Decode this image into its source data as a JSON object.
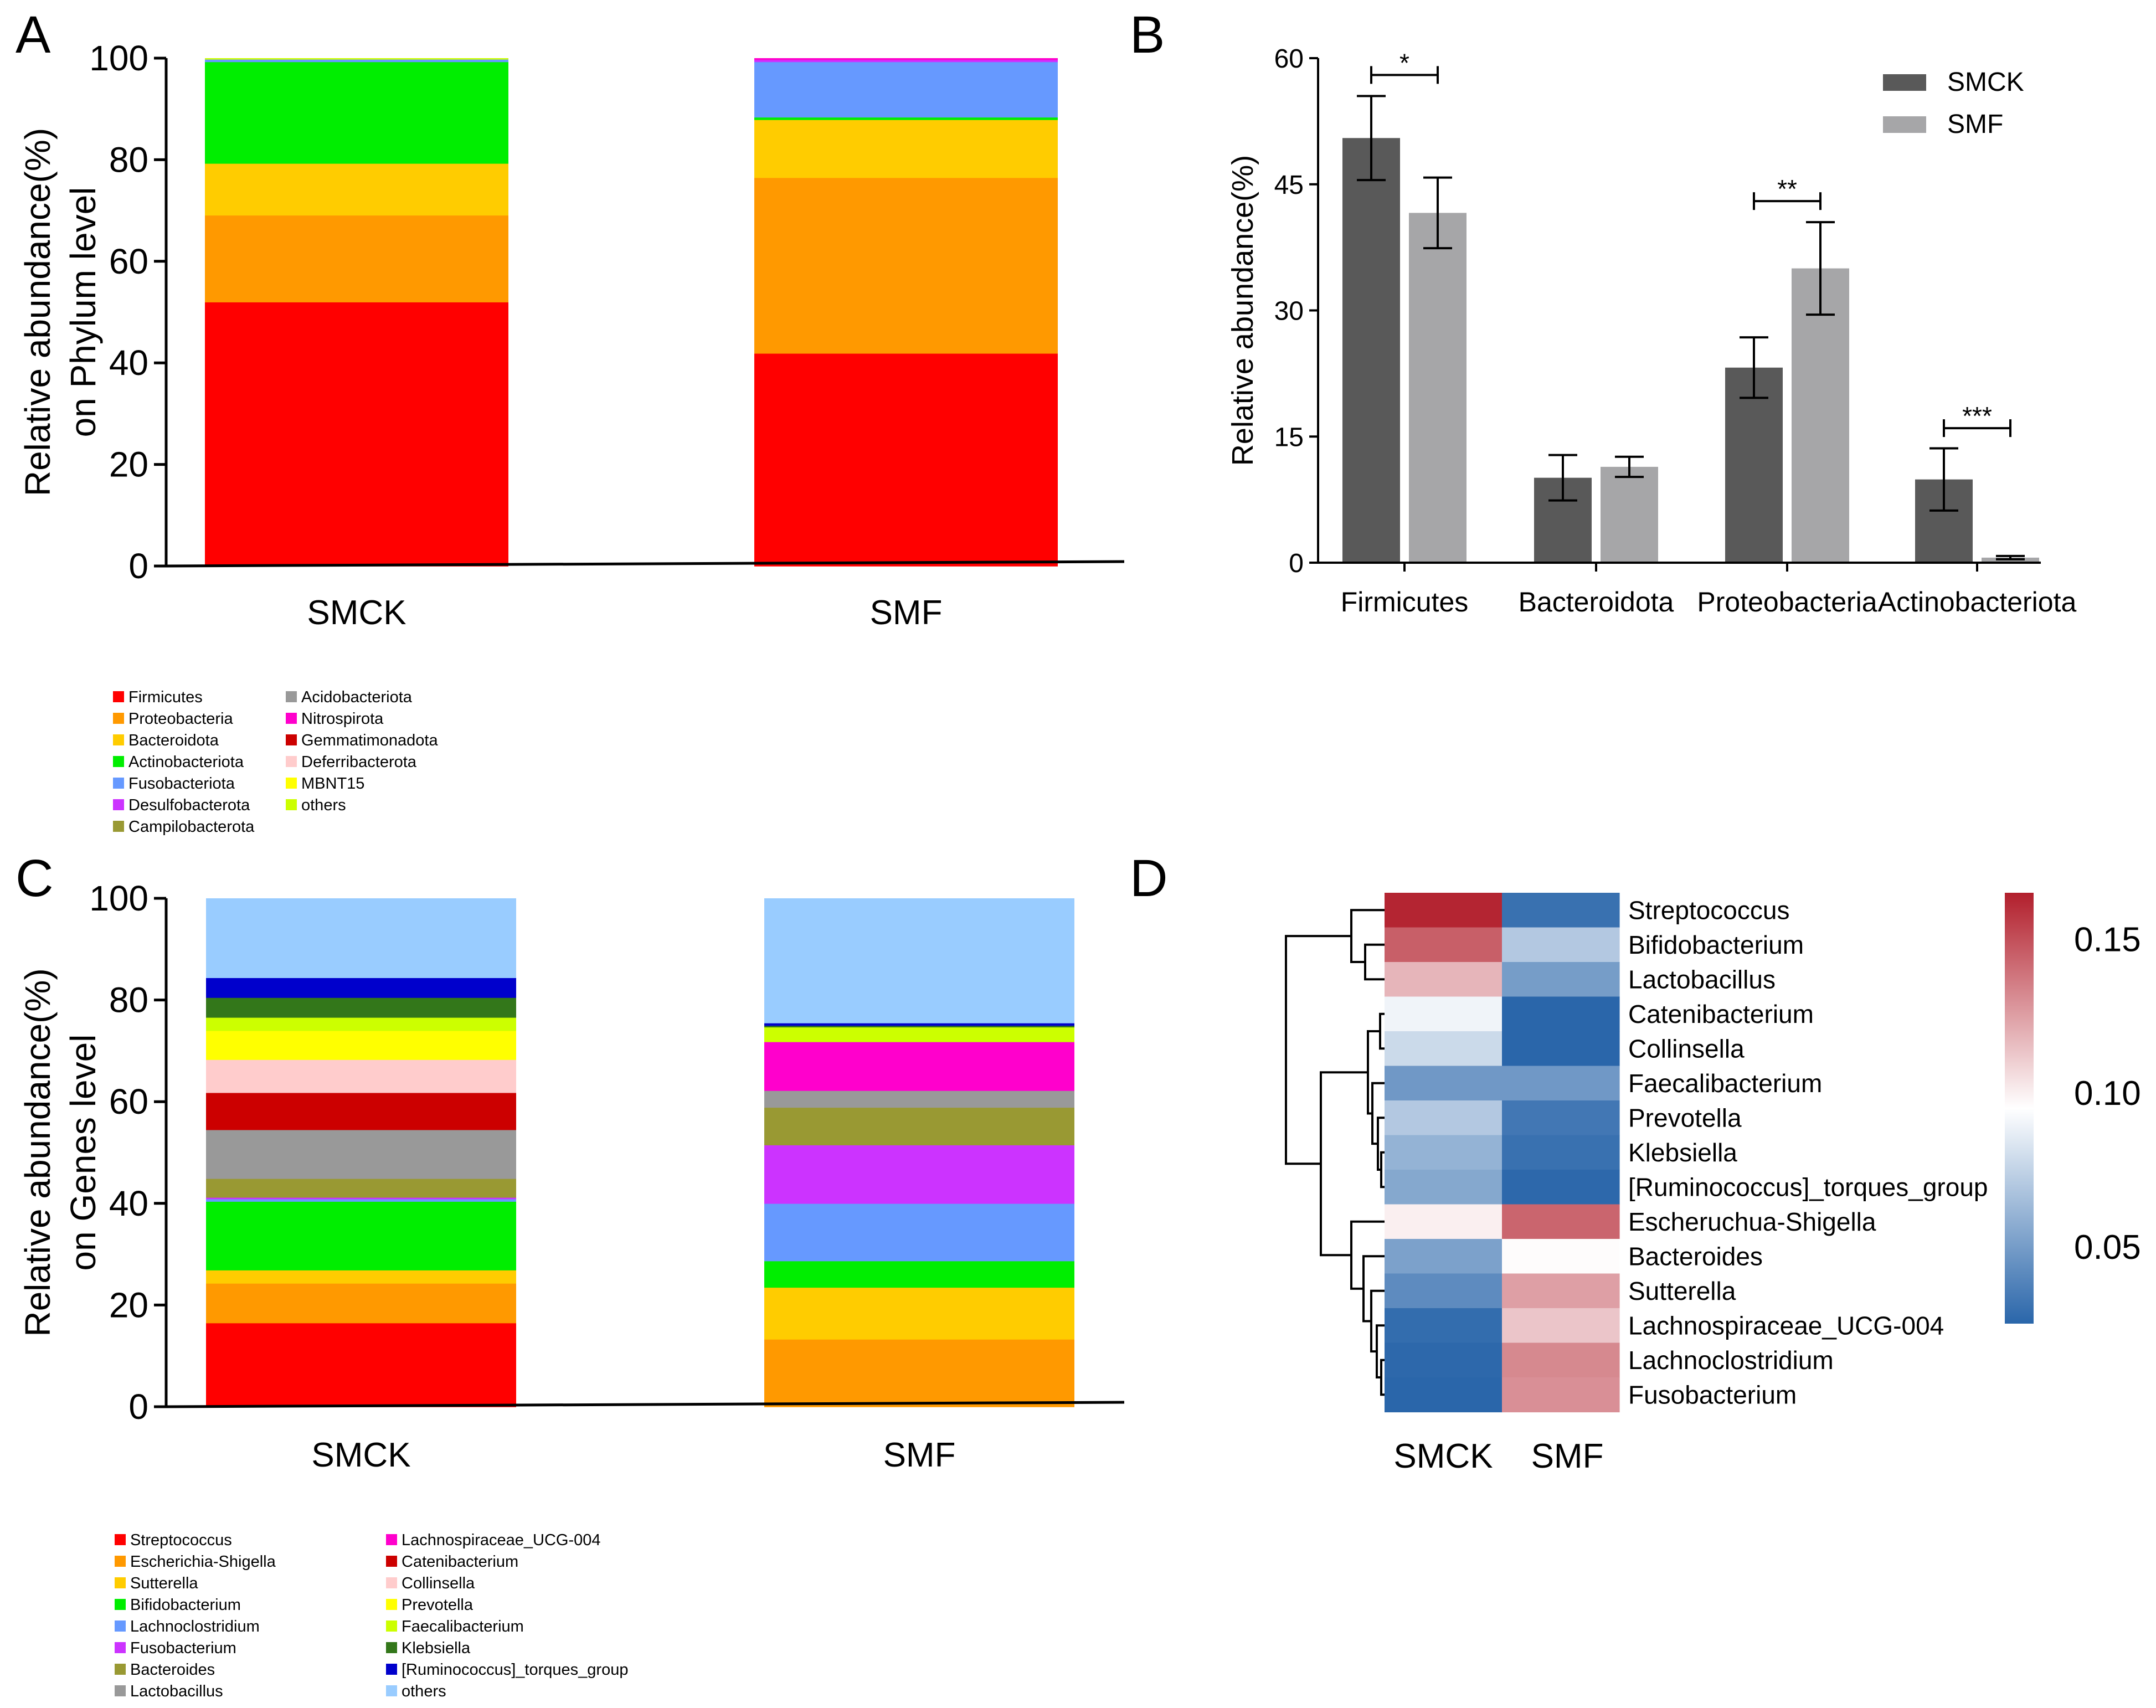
{
  "panels": {
    "A": {
      "letter": "A"
    },
    "B": {
      "letter": "B"
    },
    "C": {
      "letter": "C"
    },
    "D": {
      "letter": "D"
    }
  },
  "chart_data": [
    {
      "id": "A",
      "type": "bar",
      "stacked": true,
      "title": "",
      "xlabel": "",
      "ylabel_lines": [
        "Relative abundance(%)",
        "on Phylum level"
      ],
      "ylim": [
        0,
        100
      ],
      "yticks": [
        0,
        20,
        40,
        60,
        80,
        100
      ],
      "categories": [
        "SMCK",
        "SMF"
      ],
      "legend": {
        "placement": "bottom-left",
        "columns": 2,
        "rows_per_column": 7
      },
      "series": [
        {
          "name": "Firmicutes",
          "color": "#FF0000",
          "values": [
            52.0,
            41.9
          ]
        },
        {
          "name": "Proteobacteria",
          "color": "#FF9900",
          "values": [
            17.1,
            34.6
          ]
        },
        {
          "name": "Bacteroidota",
          "color": "#FFCC00",
          "values": [
            10.2,
            11.4
          ]
        },
        {
          "name": "Actinobacteriota",
          "color": "#00EE00",
          "values": [
            20.0,
            0.5
          ]
        },
        {
          "name": "Fusobacteriota",
          "color": "#6699FF",
          "values": [
            0.5,
            10.9
          ]
        },
        {
          "name": "Desulfobacterota",
          "color": "#CC33FF",
          "values": [
            0.0,
            0.4
          ]
        },
        {
          "name": "Campilobacterota",
          "color": "#999933",
          "values": [
            0.0,
            0.0
          ]
        },
        {
          "name": "Acidobacteriota",
          "color": "#999999",
          "values": [
            0.0,
            0.0
          ]
        },
        {
          "name": "Nitrospirota",
          "color": "#FF00CC",
          "values": [
            0.0,
            0.3
          ]
        },
        {
          "name": "Gemmatimonadota",
          "color": "#CC0000",
          "values": [
            0.0,
            0.0
          ]
        },
        {
          "name": "Deferribacterota",
          "color": "#FFCCCC",
          "values": [
            0.0,
            0.0
          ]
        },
        {
          "name": "MBNT15",
          "color": "#FFFF00",
          "values": [
            0.0,
            0.0
          ]
        },
        {
          "name": "others",
          "color": "#CCFF00",
          "values": [
            0.2,
            0.0
          ]
        }
      ]
    },
    {
      "id": "B",
      "type": "bar",
      "grouped": true,
      "title": "",
      "xlabel": "",
      "ylabel": "Relative abundance(%)",
      "ylim": [
        0,
        60
      ],
      "yticks": [
        0,
        15,
        30,
        45,
        60
      ],
      "categories": [
        "Firmicutes",
        "Bacteroidota",
        "Proteobacteria",
        "Actinobacteriota"
      ],
      "legend": {
        "placement": "top-right"
      },
      "series": [
        {
          "name": "SMCK",
          "color": "#595959",
          "values": [
            50.5,
            10.1,
            23.2,
            9.9
          ],
          "errors": [
            5.0,
            2.7,
            3.6,
            3.7
          ]
        },
        {
          "name": "SMF",
          "color": "#A6A6A8",
          "values": [
            41.6,
            11.4,
            35.0,
            0.6
          ],
          "errors": [
            4.2,
            1.2,
            5.5,
            0.2
          ]
        }
      ],
      "significance": [
        {
          "category": "Firmicutes",
          "label": "*",
          "y": 58.0
        },
        {
          "category": "Proteobacteria",
          "label": "**",
          "y": 43.0
        },
        {
          "category": "Actinobacteriota",
          "label": "***",
          "y": 16.0
        }
      ]
    },
    {
      "id": "C",
      "type": "bar",
      "stacked": true,
      "title": "",
      "xlabel": "",
      "ylabel_lines": [
        "Relative abundance(%)",
        "on Genes level"
      ],
      "ylim": [
        0,
        100
      ],
      "yticks": [
        0,
        20,
        40,
        60,
        80,
        100
      ],
      "categories": [
        "SMCK",
        "SMF"
      ],
      "legend": {
        "placement": "bottom-left",
        "columns": 2,
        "rows_per_column": 8
      },
      "series": [
        {
          "name": "Streptococcus",
          "color": "#FF0000",
          "values": [
            16.5,
            0.0
          ]
        },
        {
          "name": "Escherichia-Shigella",
          "color": "#FF9900",
          "values": [
            7.8,
            13.3
          ]
        },
        {
          "name": "Sutterella",
          "color": "#FFCC00",
          "values": [
            2.6,
            10.2
          ]
        },
        {
          "name": "Bifidobacterium",
          "color": "#00EE00",
          "values": [
            13.5,
            5.2
          ]
        },
        {
          "name": "Lachnoclostridium",
          "color": "#6699FF",
          "values": [
            0.5,
            11.3
          ]
        },
        {
          "name": "Fusobacterium",
          "color": "#CC33FF",
          "values": [
            0.3,
            11.5
          ]
        },
        {
          "name": "Bacteroides",
          "color": "#999933",
          "values": [
            3.7,
            7.4
          ]
        },
        {
          "name": "Lactobacillus",
          "color": "#999999",
          "values": [
            9.6,
            3.3
          ]
        },
        {
          "name": "Lachnospiraceae_UCG-004",
          "color": "#FF00CC",
          "values": [
            0.0,
            9.6
          ]
        },
        {
          "name": "Catenibacterium",
          "color": "#CC0000",
          "values": [
            7.3,
            0.0
          ]
        },
        {
          "name": "Collinsella",
          "color": "#FFCCCC",
          "values": [
            6.5,
            0.0
          ]
        },
        {
          "name": "Prevotella",
          "color": "#FFFF00",
          "values": [
            5.7,
            0.0
          ]
        },
        {
          "name": "Faecalibacterium",
          "color": "#CCFF00",
          "values": [
            2.6,
            2.9
          ]
        },
        {
          "name": "Klebsiella",
          "color": "#33771A",
          "values": [
            3.9,
            0.3
          ]
        },
        {
          "name": "[Ruminococcus]_torques_group",
          "color": "#0000CC",
          "values": [
            3.9,
            0.5
          ]
        },
        {
          "name": "others",
          "color": "#99CCFF",
          "values": [
            15.6,
            24.5
          ]
        }
      ]
    },
    {
      "id": "D",
      "type": "heatmap",
      "title": "",
      "columns": [
        "SMCK",
        "SMF"
      ],
      "rows": [
        "Streptococcus",
        "Bifidobacterium",
        "Lactobacillus",
        "Catenibacterium",
        "Collinsella",
        "Faecalibacterium",
        "Prevotella",
        "Klebsiella",
        "[Ruminococcus]_torques_group",
        "Escheruchua-Shigella",
        "Bacteroides",
        "Sutterella",
        "Lachnospiraceae_UCG-004",
        "Lachnoclostridium",
        "Fusobacterium"
      ],
      "values": [
        [
          0.163,
          0.03
        ],
        [
          0.145,
          0.07
        ],
        [
          0.118,
          0.05
        ],
        [
          0.09,
          0.025
        ],
        [
          0.078,
          0.025
        ],
        [
          0.048,
          0.048
        ],
        [
          0.07,
          0.033
        ],
        [
          0.06,
          0.03
        ],
        [
          0.055,
          0.026
        ],
        [
          0.1,
          0.143
        ],
        [
          0.052,
          0.096
        ],
        [
          0.042,
          0.125
        ],
        [
          0.028,
          0.113
        ],
        [
          0.026,
          0.132
        ],
        [
          0.025,
          0.13
        ]
      ],
      "colorbar": {
        "range": [
          0.025,
          0.165
        ],
        "ticks": [
          "0.15",
          "0.10",
          "0.05"
        ],
        "tick_values": [
          0.15,
          0.1,
          0.05
        ],
        "low_color": "#2A66AA",
        "mid_color": "#FFFFFF",
        "high_color": "#B21F2C"
      },
      "dendrogram": "rows"
    }
  ]
}
